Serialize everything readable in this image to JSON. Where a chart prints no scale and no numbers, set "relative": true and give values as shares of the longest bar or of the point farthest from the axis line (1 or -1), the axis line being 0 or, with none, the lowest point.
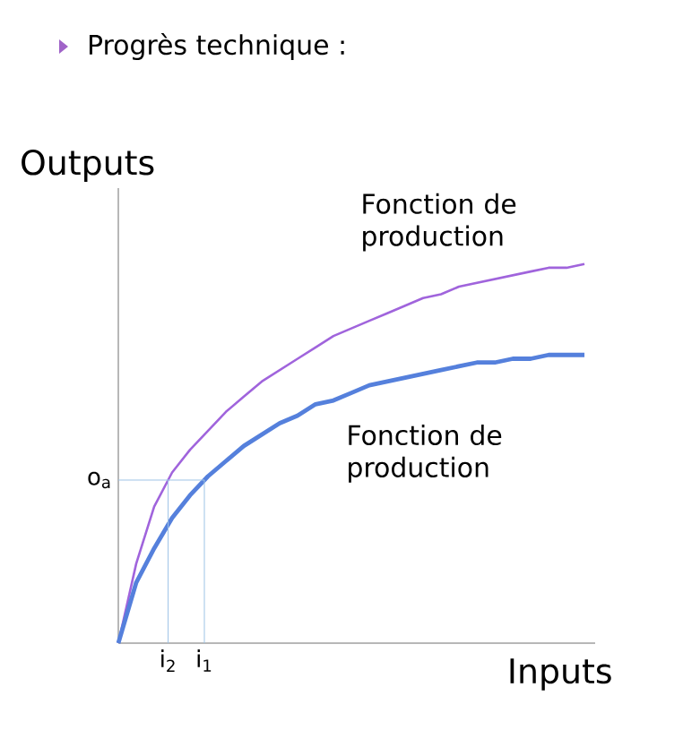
{
  "chart_data": {
    "type": "line",
    "title": "Progrès technique :",
    "xlabel": "Inputs",
    "ylabel": "Outputs",
    "relative": true,
    "marker": "none",
    "legend": false,
    "categories": [
      null,
      null,
      null,
      null,
      null,
      null,
      null,
      null,
      null,
      null,
      null,
      null,
      null,
      null,
      null,
      null,
      null,
      null,
      null,
      null,
      null,
      null,
      null,
      null,
      null,
      null,
      null
    ],
    "series": [
      {
        "name": "Fonction de production",
        "color": "#a064dc",
        "values": [
          0,
          0.21,
          0.36,
          0.45,
          0.51,
          0.56,
          0.61,
          0.65,
          0.69,
          0.72,
          0.75,
          0.78,
          0.81,
          0.83,
          0.85,
          0.87,
          0.89,
          0.91,
          0.92,
          0.94,
          0.95,
          0.96,
          0.97,
          0.98,
          0.99,
          0.99,
          1
        ]
      },
      {
        "name": "Fonction de production",
        "color": "#5580dc",
        "values": [
          0,
          0.16,
          0.25,
          0.33,
          0.39,
          0.44,
          0.48,
          0.52,
          0.55,
          0.58,
          0.6,
          0.63,
          0.64,
          0.66,
          0.68,
          0.69,
          0.7,
          0.71,
          0.72,
          0.73,
          0.74,
          0.74,
          0.75,
          0.75,
          0.76,
          0.76,
          0.76
        ]
      }
    ],
    "ref_lines": [
      {
        "axis": "y",
        "value": 0.43,
        "label": "o$_{a}$",
        "color": "#9dc3e6"
      }
    ],
    "annotations": [
      "i$_{2}$",
      "i$_{1}$"
    ]
  }
}
